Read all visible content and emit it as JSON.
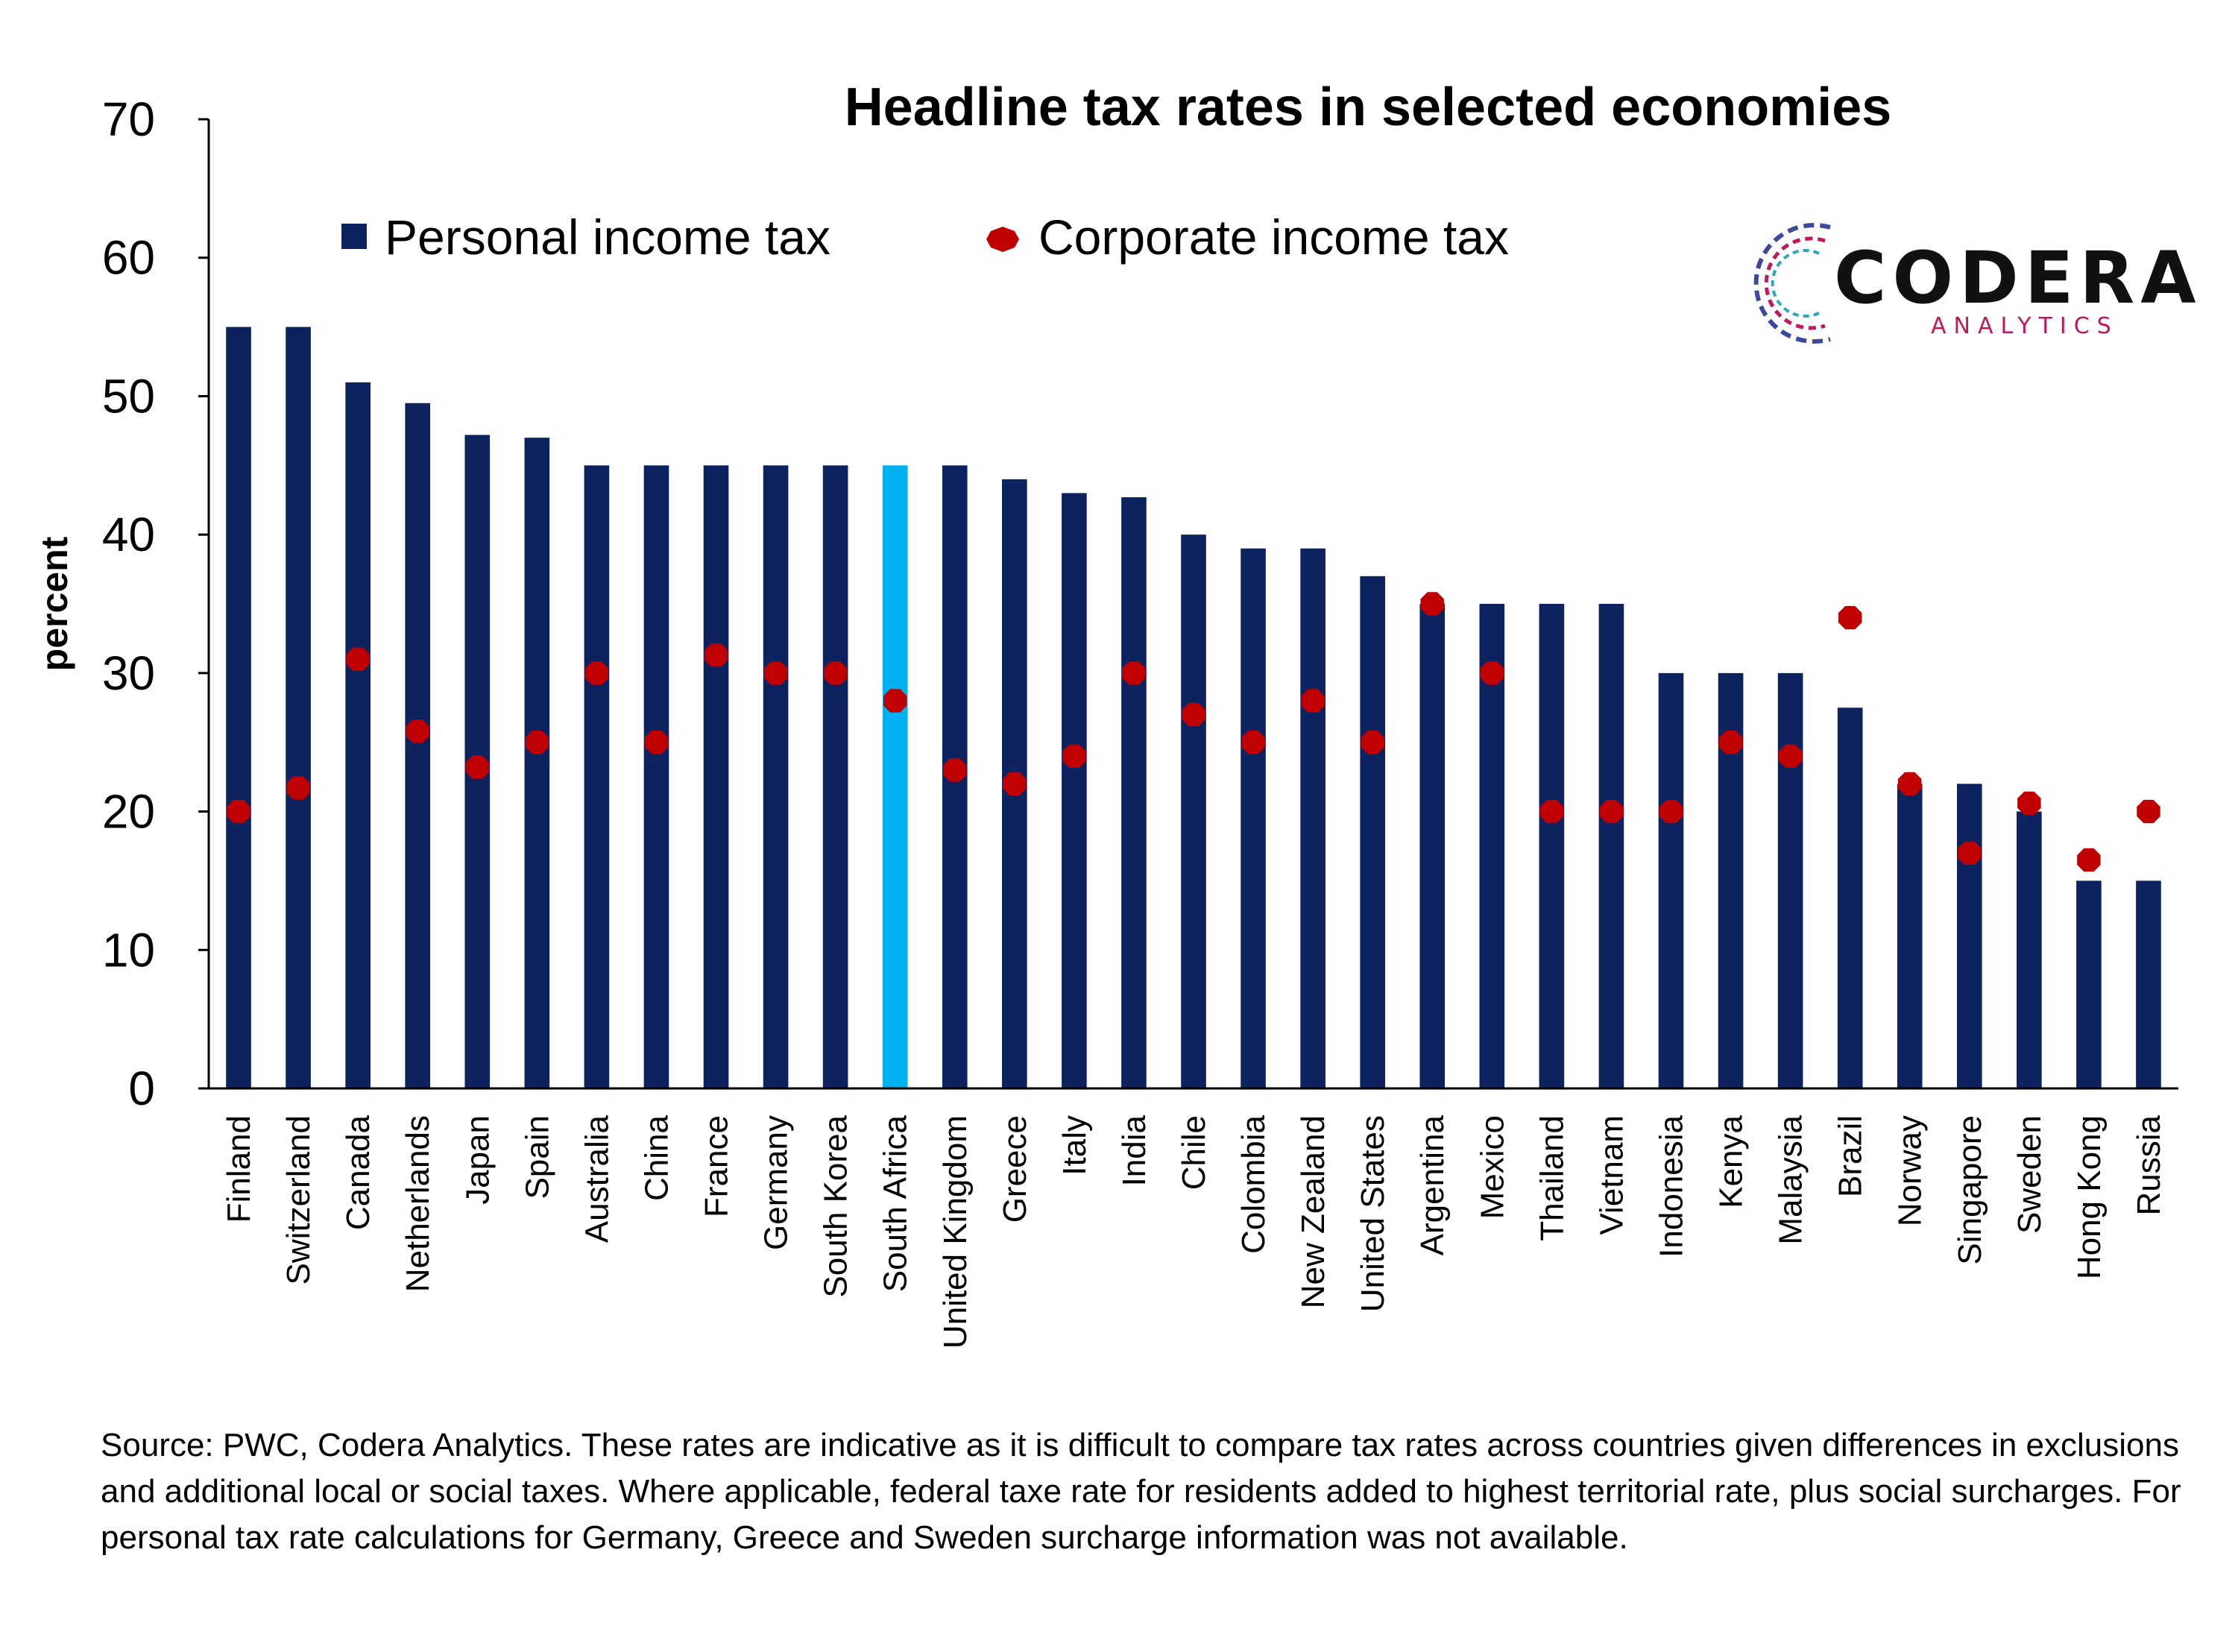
{
  "chart_data": {
    "type": "bar",
    "title": "Headline tax rates in selected economies",
    "ylabel": "percent",
    "ylim": [
      0,
      70
    ],
    "yticks": [
      0,
      10,
      20,
      30,
      40,
      50,
      60,
      70
    ],
    "grid": false,
    "legend_position": "top",
    "categories": [
      "Finland",
      "Switzerland",
      "Canada",
      "Netherlands",
      "Japan",
      "Spain",
      "Australia",
      "China",
      "France",
      "Germany",
      "South Korea",
      "South Africa",
      "United Kingdom",
      "Greece",
      "Italy",
      "India",
      "Chile",
      "Colombia",
      "New Zealand",
      "United States",
      "Argentina",
      "Mexico",
      "Thailand",
      "Vietnam",
      "Indonesia",
      "Kenya",
      "Malaysia",
      "Brazil",
      "Norway",
      "Singapore",
      "Sweden",
      "Hong Kong",
      "Russia"
    ],
    "highlight_category": "South Africa",
    "series": [
      {
        "name": "Personal income tax",
        "mark": "bar",
        "color": "#0d2360",
        "highlight_color": "#00b0f0",
        "values": [
          55,
          55,
          51,
          49.5,
          47.2,
          47,
          45,
          45,
          45,
          45,
          45,
          45,
          45,
          44,
          43,
          42.7,
          40,
          39,
          39,
          37,
          35,
          35,
          35,
          35,
          30,
          30,
          30,
          27.5,
          22,
          22,
          20,
          15,
          15
        ]
      },
      {
        "name": "Corporate income tax",
        "mark": "dot",
        "color": "#c00000",
        "values": [
          20,
          21.7,
          31,
          25.8,
          23.2,
          25,
          30,
          25,
          31.3,
          30,
          30,
          28,
          23,
          22,
          24,
          30,
          27,
          25,
          28,
          25,
          35,
          30,
          20,
          20,
          20,
          25,
          24,
          34,
          22,
          17,
          20.6,
          16.5,
          20
        ]
      }
    ]
  },
  "logo": {
    "word": "CODERA",
    "sub": "ANALYTICS",
    "ring_colors": [
      "#c2185b",
      "#3b4a9a",
      "#2aa8b8"
    ]
  },
  "source_note": "Source: PWC, Codera Analytics. These rates are indicative as it is difficult to compare tax rates across countries given differences in exclusions and additional local or social taxes. Where applicable, federal taxe rate for residents added to highest territorial rate, plus social surcharges. For personal tax rate calculations for Germany, Greece and Sweden surcharge information was not available."
}
